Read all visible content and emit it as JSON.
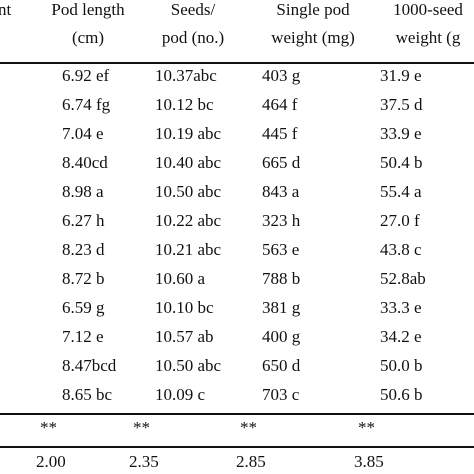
{
  "table": {
    "header": {
      "first_column": "nt",
      "columns": [
        [
          "Pod length",
          "(cm)"
        ],
        [
          "Seeds/",
          "pod (no.)"
        ],
        [
          "Single pod",
          "weight (mg)"
        ],
        [
          "1000-seed",
          "weight (g"
        ]
      ]
    },
    "rows": [
      [
        "6.92 ef",
        "10.37abc",
        "403 g",
        "31.9 e"
      ],
      [
        "6.74 fg",
        "10.12 bc",
        "464 f",
        "37.5 d"
      ],
      [
        "7.04 e",
        "10.19 abc",
        "445 f",
        "33.9 e"
      ],
      [
        "8.40cd",
        "10.40 abc",
        "665 d",
        "50.4 b"
      ],
      [
        "8.98 a",
        "10.50 abc",
        "843 a",
        "55.4 a"
      ],
      [
        "6.27 h",
        "10.22 abc",
        "323 h",
        "27.0 f"
      ],
      [
        "8.23 d",
        "10.21 abc",
        "563 e",
        "43.8 c"
      ],
      [
        "8.72 b",
        "10.60 a",
        "788 b",
        "52.8ab"
      ],
      [
        "6.59 g",
        "10.10 bc",
        "381 g",
        "33.3 e"
      ],
      [
        "7.12 e",
        "10.57 ab",
        "400 g",
        "34.2 e"
      ],
      [
        "8.47bcd",
        "10.50 abc",
        "650 d",
        "50.0 b"
      ],
      [
        "8.65 bc",
        "10.09 c",
        "703 c",
        "50.6 b"
      ]
    ],
    "significance": [
      "**",
      "**",
      "**",
      "**"
    ],
    "lsd": [
      "2.00",
      "2.35",
      "2.85",
      "3.85"
    ]
  }
}
